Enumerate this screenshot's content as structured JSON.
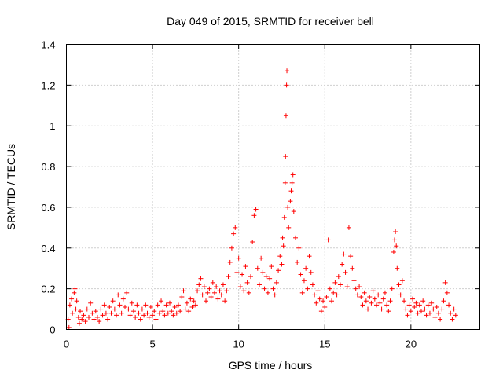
{
  "chart_data": {
    "type": "scatter",
    "title": "Day 049 of 2015, SRMTID for receiver bell",
    "xlabel": "GPS time / hours",
    "ylabel": "SRMTID / TECUs",
    "xlim": [
      0,
      24
    ],
    "ylim": [
      0,
      1.4
    ],
    "x_ticks": [
      0,
      5,
      10,
      15,
      20
    ],
    "x_tick_labels": [
      "0",
      "5",
      "10",
      "15",
      "20"
    ],
    "y_ticks": [
      0,
      0.2,
      0.4,
      0.6,
      0.8,
      1,
      1.2,
      1.4
    ],
    "y_tick_labels": [
      "0",
      "0.2",
      "0.4",
      "0.6",
      "0.8",
      "1",
      "1.2",
      "1.4"
    ],
    "grid": true,
    "marker": "+",
    "color": "#ff0000",
    "series": [
      {
        "name": "SRMTID",
        "points": [
          [
            0.1,
            0.05
          ],
          [
            0.15,
            0.01
          ],
          [
            0.2,
            0.12
          ],
          [
            0.3,
            0.15
          ],
          [
            0.35,
            0.08
          ],
          [
            0.45,
            0.18
          ],
          [
            0.5,
            0.2
          ],
          [
            0.55,
            0.1
          ],
          [
            0.6,
            0.14
          ],
          [
            0.7,
            0.06
          ],
          [
            0.75,
            0.03
          ],
          [
            0.8,
            0.09
          ],
          [
            0.9,
            0.05
          ],
          [
            1.0,
            0.07
          ],
          [
            1.1,
            0.04
          ],
          [
            1.2,
            0.1
          ],
          [
            1.3,
            0.06
          ],
          [
            1.4,
            0.13
          ],
          [
            1.5,
            0.08
          ],
          [
            1.6,
            0.05
          ],
          [
            1.7,
            0.09
          ],
          [
            1.8,
            0.06
          ],
          [
            1.9,
            0.04
          ],
          [
            2.0,
            0.1
          ],
          [
            2.1,
            0.07
          ],
          [
            2.2,
            0.12
          ],
          [
            2.3,
            0.08
          ],
          [
            2.4,
            0.05
          ],
          [
            2.5,
            0.11
          ],
          [
            2.6,
            0.08
          ],
          [
            2.7,
            0.14
          ],
          [
            2.8,
            0.1
          ],
          [
            2.9,
            0.07
          ],
          [
            3.0,
            0.17
          ],
          [
            3.1,
            0.12
          ],
          [
            3.2,
            0.08
          ],
          [
            3.3,
            0.15
          ],
          [
            3.4,
            0.11
          ],
          [
            3.5,
            0.18
          ],
          [
            3.6,
            0.1
          ],
          [
            3.7,
            0.07
          ],
          [
            3.8,
            0.13
          ],
          [
            3.9,
            0.09
          ],
          [
            4.0,
            0.06
          ],
          [
            4.1,
            0.12
          ],
          [
            4.2,
            0.08
          ],
          [
            4.3,
            0.05
          ],
          [
            4.4,
            0.1
          ],
          [
            4.5,
            0.07
          ],
          [
            4.6,
            0.12
          ],
          [
            4.7,
            0.08
          ],
          [
            4.8,
            0.06
          ],
          [
            4.9,
            0.11
          ],
          [
            5.0,
            0.07
          ],
          [
            5.1,
            0.09
          ],
          [
            5.2,
            0.05
          ],
          [
            5.3,
            0.12
          ],
          [
            5.4,
            0.08
          ],
          [
            5.5,
            0.14
          ],
          [
            5.6,
            0.09
          ],
          [
            5.7,
            0.07
          ],
          [
            5.8,
            0.12
          ],
          [
            5.9,
            0.08
          ],
          [
            6.0,
            0.13
          ],
          [
            6.1,
            0.09
          ],
          [
            6.2,
            0.07
          ],
          [
            6.3,
            0.11
          ],
          [
            6.4,
            0.08
          ],
          [
            6.5,
            0.12
          ],
          [
            6.6,
            0.09
          ],
          [
            6.7,
            0.16
          ],
          [
            6.8,
            0.19
          ],
          [
            6.9,
            0.1
          ],
          [
            7.0,
            0.13
          ],
          [
            7.1,
            0.09
          ],
          [
            7.2,
            0.15
          ],
          [
            7.3,
            0.11
          ],
          [
            7.4,
            0.14
          ],
          [
            7.5,
            0.12
          ],
          [
            7.6,
            0.19
          ],
          [
            7.7,
            0.22
          ],
          [
            7.8,
            0.25
          ],
          [
            7.9,
            0.17
          ],
          [
            8.0,
            0.21
          ],
          [
            8.1,
            0.14
          ],
          [
            8.2,
            0.18
          ],
          [
            8.3,
            0.2
          ],
          [
            8.4,
            0.16
          ],
          [
            8.5,
            0.23
          ],
          [
            8.6,
            0.18
          ],
          [
            8.7,
            0.21
          ],
          [
            8.8,
            0.15
          ],
          [
            8.9,
            0.19
          ],
          [
            9.0,
            0.17
          ],
          [
            9.1,
            0.22
          ],
          [
            9.2,
            0.14
          ],
          [
            9.3,
            0.19
          ],
          [
            9.4,
            0.26
          ],
          [
            9.5,
            0.33
          ],
          [
            9.6,
            0.4
          ],
          [
            9.7,
            0.47
          ],
          [
            9.8,
            0.5
          ],
          [
            9.9,
            0.28
          ],
          [
            10.0,
            0.35
          ],
          [
            10.1,
            0.21
          ],
          [
            10.2,
            0.27
          ],
          [
            10.3,
            0.19
          ],
          [
            10.4,
            0.31
          ],
          [
            10.5,
            0.23
          ],
          [
            10.6,
            0.18
          ],
          [
            10.7,
            0.26
          ],
          [
            10.8,
            0.43
          ],
          [
            10.9,
            0.56
          ],
          [
            11.0,
            0.59
          ],
          [
            11.1,
            0.3
          ],
          [
            11.2,
            0.22
          ],
          [
            11.3,
            0.35
          ],
          [
            11.4,
            0.28
          ],
          [
            11.5,
            0.2
          ],
          [
            11.6,
            0.26
          ],
          [
            11.7,
            0.18
          ],
          [
            11.8,
            0.25
          ],
          [
            11.9,
            0.31
          ],
          [
            12.0,
            0.2
          ],
          [
            12.1,
            0.17
          ],
          [
            12.2,
            0.23
          ],
          [
            12.3,
            0.29
          ],
          [
            12.4,
            0.36
          ],
          [
            12.5,
            0.32
          ],
          [
            12.55,
            0.45
          ],
          [
            12.6,
            0.41
          ],
          [
            12.65,
            0.55
          ],
          [
            12.7,
            0.72
          ],
          [
            12.72,
            0.85
          ],
          [
            12.75,
            1.05
          ],
          [
            12.78,
            1.2
          ],
          [
            12.8,
            1.27
          ],
          [
            12.85,
            0.6
          ],
          [
            12.9,
            0.5
          ],
          [
            13.0,
            0.63
          ],
          [
            13.05,
            0.68
          ],
          [
            13.1,
            0.72
          ],
          [
            13.15,
            0.76
          ],
          [
            13.2,
            0.58
          ],
          [
            13.3,
            0.45
          ],
          [
            13.4,
            0.33
          ],
          [
            13.5,
            0.4
          ],
          [
            13.6,
            0.27
          ],
          [
            13.7,
            0.18
          ],
          [
            13.8,
            0.24
          ],
          [
            13.9,
            0.3
          ],
          [
            14.0,
            0.2
          ],
          [
            14.1,
            0.36
          ],
          [
            14.2,
            0.28
          ],
          [
            14.3,
            0.22
          ],
          [
            14.4,
            0.17
          ],
          [
            14.5,
            0.13
          ],
          [
            14.6,
            0.19
          ],
          [
            14.7,
            0.15
          ],
          [
            14.8,
            0.09
          ],
          [
            14.9,
            0.14
          ],
          [
            15.0,
            0.11
          ],
          [
            15.1,
            0.16
          ],
          [
            15.2,
            0.44
          ],
          [
            15.3,
            0.2
          ],
          [
            15.4,
            0.14
          ],
          [
            15.5,
            0.18
          ],
          [
            15.6,
            0.23
          ],
          [
            15.7,
            0.17
          ],
          [
            15.8,
            0.26
          ],
          [
            15.9,
            0.22
          ],
          [
            16.0,
            0.32
          ],
          [
            16.1,
            0.37
          ],
          [
            16.2,
            0.28
          ],
          [
            16.3,
            0.21
          ],
          [
            16.4,
            0.5
          ],
          [
            16.5,
            0.36
          ],
          [
            16.6,
            0.3
          ],
          [
            16.7,
            0.24
          ],
          [
            16.8,
            0.2
          ],
          [
            16.9,
            0.17
          ],
          [
            17.0,
            0.21
          ],
          [
            17.1,
            0.16
          ],
          [
            17.2,
            0.12
          ],
          [
            17.3,
            0.18
          ],
          [
            17.4,
            0.14
          ],
          [
            17.5,
            0.1
          ],
          [
            17.6,
            0.16
          ],
          [
            17.7,
            0.13
          ],
          [
            17.8,
            0.19
          ],
          [
            17.9,
            0.15
          ],
          [
            18.0,
            0.12
          ],
          [
            18.1,
            0.17
          ],
          [
            18.2,
            0.13
          ],
          [
            18.3,
            0.1
          ],
          [
            18.4,
            0.15
          ],
          [
            18.5,
            0.18
          ],
          [
            18.6,
            0.12
          ],
          [
            18.7,
            0.09
          ],
          [
            18.8,
            0.14
          ],
          [
            18.9,
            0.2
          ],
          [
            19.0,
            0.38
          ],
          [
            19.05,
            0.44
          ],
          [
            19.1,
            0.48
          ],
          [
            19.15,
            0.41
          ],
          [
            19.2,
            0.3
          ],
          [
            19.3,
            0.22
          ],
          [
            19.4,
            0.17
          ],
          [
            19.5,
            0.24
          ],
          [
            19.6,
            0.14
          ],
          [
            19.7,
            0.1
          ],
          [
            19.8,
            0.07
          ],
          [
            19.9,
            0.12
          ],
          [
            20.0,
            0.09
          ],
          [
            20.1,
            0.15
          ],
          [
            20.2,
            0.11
          ],
          [
            20.3,
            0.13
          ],
          [
            20.4,
            0.08
          ],
          [
            20.5,
            0.12
          ],
          [
            20.6,
            0.09
          ],
          [
            20.7,
            0.14
          ],
          [
            20.8,
            0.1
          ],
          [
            20.9,
            0.07
          ],
          [
            21.0,
            0.12
          ],
          [
            21.1,
            0.08
          ],
          [
            21.2,
            0.13
          ],
          [
            21.3,
            0.1
          ],
          [
            21.4,
            0.06
          ],
          [
            21.5,
            0.11
          ],
          [
            21.6,
            0.08
          ],
          [
            21.7,
            0.05
          ],
          [
            21.8,
            0.1
          ],
          [
            21.9,
            0.14
          ],
          [
            22.0,
            0.23
          ],
          [
            22.1,
            0.18
          ],
          [
            22.2,
            0.12
          ],
          [
            22.3,
            0.08
          ],
          [
            22.4,
            0.05
          ],
          [
            22.5,
            0.1
          ],
          [
            22.6,
            0.07
          ]
        ]
      }
    ]
  }
}
